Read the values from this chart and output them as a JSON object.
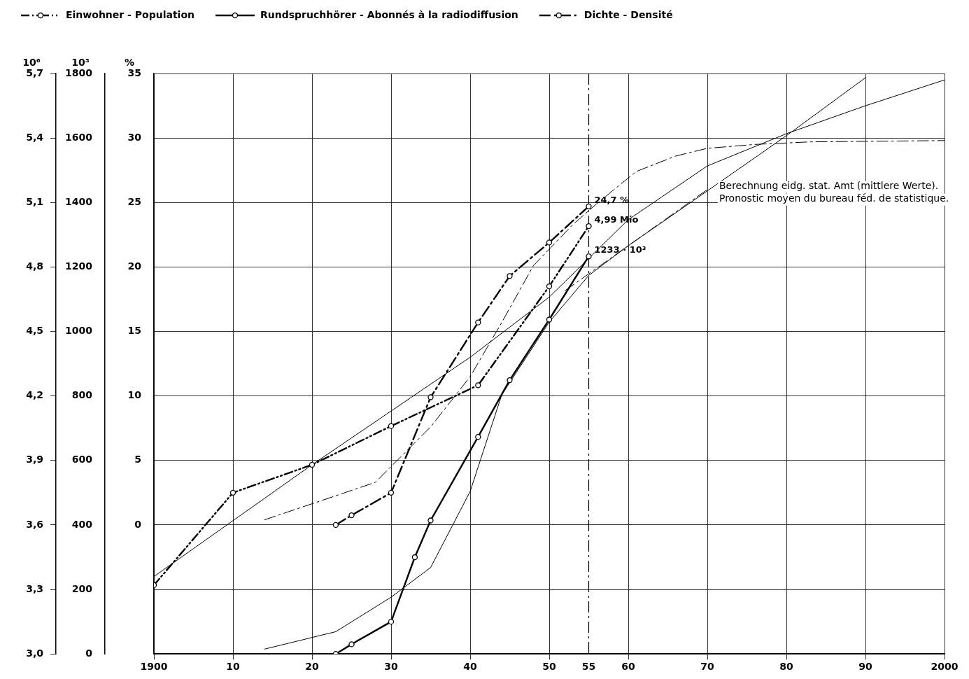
{
  "chart_data": {
    "type": "line",
    "xlim": [
      1900,
      2000
    ],
    "xticks": [
      {
        "value": 1900,
        "label": "1900"
      },
      {
        "value": 1910,
        "label": "10"
      },
      {
        "value": 1920,
        "label": "20"
      },
      {
        "value": 1930,
        "label": "30"
      },
      {
        "value": 1940,
        "label": "40"
      },
      {
        "value": 1950,
        "label": "50"
      },
      {
        "value": 1955,
        "label": "55"
      },
      {
        "value": 1960,
        "label": "60"
      },
      {
        "value": 1970,
        "label": "70"
      },
      {
        "value": 1980,
        "label": "80"
      },
      {
        "value": 1990,
        "label": "90"
      },
      {
        "value": 2000,
        "label": "2000"
      }
    ],
    "ylabel": "10⁶",
    "ylim": [
      3.0,
      5.7
    ],
    "yticks": [
      {
        "value": 3.0,
        "label": "3,0"
      },
      {
        "value": 3.3,
        "label": "3,3"
      },
      {
        "value": 3.6,
        "label": "3,6"
      },
      {
        "value": 3.9,
        "label": "3,9"
      },
      {
        "value": 4.2,
        "label": "4,2"
      },
      {
        "value": 4.5,
        "label": "4,5"
      },
      {
        "value": 4.8,
        "label": "4,8"
      },
      {
        "value": 5.1,
        "label": "5,1"
      },
      {
        "value": 5.4,
        "label": "5,4"
      },
      {
        "value": 5.7,
        "label": "5,7"
      }
    ],
    "y2label": "10³",
    "y2lim": [
      0,
      1800
    ],
    "y2ticks": [
      0,
      200,
      400,
      600,
      800,
      1000,
      1200,
      1400,
      1600,
      1800
    ],
    "y3label": "%",
    "y3lim": [
      -10,
      35
    ],
    "y3ticks": [
      0,
      5,
      10,
      15,
      20,
      25,
      30,
      35
    ],
    "grid": true,
    "legend": "top left",
    "ref_lines": [
      {
        "axis": "x",
        "value": 1955,
        "line_style": "dashed"
      }
    ],
    "annotations": [
      "Berechnung eidg. stat. Amt (mittlere Werte).",
      "Pronostic moyen du bureau féd. de statistique.",
      {
        "text": "1233 · 10³",
        "x": 1955,
        "y": 4.85
      }
    ],
    "series": [
      {
        "name": "Einwohner - Population",
        "color": "#000000",
        "axis": "y",
        "marker": "circle",
        "line_style": "dotted",
        "x": [
          1900,
          1910,
          1920,
          1930,
          1941,
          1950,
          1955
        ],
        "values": [
          3.32,
          3.75,
          3.88,
          4.06,
          4.25,
          4.71,
          4.99
        ],
        "value_labels": [
          null,
          null,
          null,
          null,
          null,
          null,
          "4,99 Mio"
        ]
      },
      {
        "name": "Rundspruchhörer - Abonnés à la radiodiffusion",
        "color": "#000000",
        "axis": "y2",
        "marker": "circle",
        "line_style": "solid",
        "x": [
          1923,
          1925,
          1930,
          1933,
          1935,
          1941,
          1945,
          1950,
          1955
        ],
        "values": [
          0,
          30,
          100,
          300,
          414,
          673,
          849,
          1037,
          1233
        ]
      },
      {
        "name": "Dichte - Densité",
        "color": "#000000",
        "axis": "y3",
        "marker": "circle",
        "line_style": "dashed",
        "x": [
          1923,
          1925,
          1930,
          1935,
          1941,
          1945,
          1950,
          1955
        ],
        "values": [
          0,
          0.75,
          2.5,
          9.9,
          15.7,
          19.3,
          21.9,
          24.7
        ],
        "value_labels": [
          null,
          null,
          null,
          null,
          null,
          null,
          null,
          "24,7 %"
        ]
      },
      {
        "color": "#000000",
        "axis": "y",
        "marker": "none",
        "line_style": "dashed",
        "x": [
          1952,
          1970
        ],
        "values": [
          4.69,
          5.16
        ]
      },
      {
        "color": "#000000",
        "axis": "y",
        "marker": "none",
        "line_style": "solid",
        "x": [
          1900,
          1910,
          1920,
          1930,
          1940,
          1950,
          1960,
          1970,
          1980,
          1990,
          2000
        ],
        "values": [
          3.36,
          3.62,
          3.88,
          4.13,
          4.38,
          4.66,
          5.02,
          5.27,
          5.42,
          5.55,
          5.67
        ]
      },
      {
        "color": "#000000",
        "axis": "y2",
        "marker": "none",
        "line_style": "solid",
        "x": [
          1914,
          1923,
          1930,
          1935,
          1940,
          1944,
          1950,
          1955,
          1960,
          1970,
          1980,
          1990
        ],
        "values": [
          15,
          69,
          176,
          268,
          504,
          804,
          1029,
          1174,
          1266,
          1436,
          1607,
          1787
        ]
      },
      {
        "color": "#000000",
        "axis": "y3",
        "marker": "none",
        "line_style": "dashed",
        "x": [
          1914,
          1928,
          1935,
          1940,
          1944,
          1948,
          1953,
          1956,
          1961,
          1966,
          1970,
          1976,
          1983,
          2000
        ],
        "values": [
          0.4,
          3.3,
          7.6,
          11.5,
          15.7,
          20.1,
          23.3,
          24.9,
          27.4,
          28.6,
          29.2,
          29.5,
          29.7,
          29.8
        ]
      }
    ]
  }
}
